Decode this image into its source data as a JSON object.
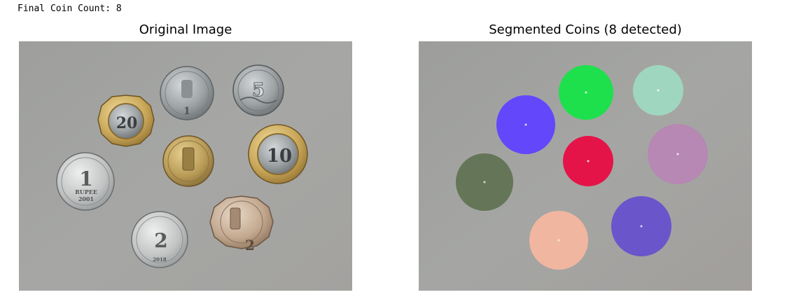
{
  "output": {
    "prefix": "Final Coin Count: ",
    "count": "8"
  },
  "original": {
    "title": "Original Image",
    "background_color": "#a5a5a3",
    "coins": [
      {
        "denomination": "1",
        "type": "silver-steel",
        "label": "1"
      },
      {
        "denomination": "5",
        "type": "steel",
        "label": "5"
      },
      {
        "denomination": "20",
        "type": "bimetal-20",
        "label": "20"
      },
      {
        "denomination": "1",
        "type": "brass-small",
        "label": ""
      },
      {
        "denomination": "10",
        "type": "bimetal-10",
        "label": "10"
      },
      {
        "denomination": "1",
        "type": "silver-large",
        "label": "1",
        "sublabel": "RUPEE",
        "year": "2001"
      },
      {
        "denomination": "2",
        "type": "silver-large",
        "label": "2",
        "year": "2018"
      },
      {
        "denomination": "2",
        "type": "copper-scalloped",
        "label": "2"
      }
    ]
  },
  "segmented": {
    "title": "Segmented Coins (8 detected)",
    "background_color": "#a3a3a1",
    "coin_colors": [
      "#1ee04c",
      "#9fd6bf",
      "#6247fb",
      "#e51448",
      "#b688b3",
      "#657558",
      "#6b55cb",
      "#f1b6a0"
    ]
  }
}
